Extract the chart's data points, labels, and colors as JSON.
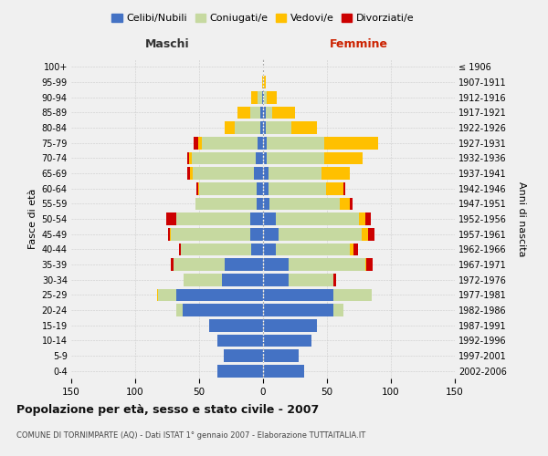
{
  "age_groups": [
    "0-4",
    "5-9",
    "10-14",
    "15-19",
    "20-24",
    "25-29",
    "30-34",
    "35-39",
    "40-44",
    "45-49",
    "50-54",
    "55-59",
    "60-64",
    "65-69",
    "70-74",
    "75-79",
    "80-84",
    "85-89",
    "90-94",
    "95-99",
    "100+"
  ],
  "birth_years": [
    "2002-2006",
    "1997-2001",
    "1992-1996",
    "1987-1991",
    "1982-1986",
    "1977-1981",
    "1972-1976",
    "1967-1971",
    "1962-1966",
    "1957-1961",
    "1952-1956",
    "1947-1951",
    "1942-1946",
    "1937-1941",
    "1932-1936",
    "1927-1931",
    "1922-1926",
    "1917-1921",
    "1912-1916",
    "1907-1911",
    "≤ 1906"
  ],
  "male": {
    "celibi": [
      36,
      31,
      36,
      42,
      63,
      68,
      32,
      30,
      9,
      10,
      10,
      5,
      5,
      7,
      6,
      4,
      2,
      2,
      1,
      0,
      0
    ],
    "coniugati": [
      0,
      0,
      0,
      0,
      5,
      14,
      30,
      40,
      55,
      62,
      58,
      48,
      45,
      48,
      50,
      44,
      20,
      8,
      3,
      0,
      0
    ],
    "vedovi": [
      0,
      0,
      0,
      0,
      0,
      1,
      0,
      0,
      0,
      1,
      0,
      0,
      1,
      2,
      2,
      3,
      8,
      10,
      5,
      1,
      0
    ],
    "divorziati": [
      0,
      0,
      0,
      0,
      0,
      0,
      0,
      2,
      2,
      1,
      8,
      0,
      1,
      2,
      1,
      3,
      0,
      0,
      0,
      0,
      0
    ]
  },
  "female": {
    "nubili": [
      32,
      28,
      38,
      42,
      55,
      55,
      20,
      20,
      10,
      12,
      10,
      5,
      4,
      4,
      3,
      3,
      2,
      2,
      1,
      0,
      0
    ],
    "coniugate": [
      0,
      0,
      0,
      0,
      8,
      30,
      35,
      60,
      58,
      65,
      65,
      55,
      45,
      42,
      45,
      45,
      20,
      5,
      2,
      0,
      0
    ],
    "vedove": [
      0,
      0,
      0,
      0,
      0,
      0,
      0,
      1,
      3,
      5,
      5,
      8,
      14,
      22,
      30,
      42,
      20,
      18,
      8,
      2,
      0
    ],
    "divorziate": [
      0,
      0,
      0,
      0,
      0,
      0,
      2,
      5,
      3,
      5,
      4,
      2,
      1,
      0,
      0,
      0,
      0,
      0,
      0,
      0,
      0
    ]
  },
  "colors": {
    "celibi": "#4472c4",
    "coniugati": "#c6d9a0",
    "vedovi": "#ffc000",
    "divorziati": "#cc0000"
  },
  "title": "Popolazione per età, sesso e stato civile - 2007",
  "subtitle": "COMUNE DI TORNIMPARTE (AQ) - Dati ISTAT 1° gennaio 2007 - Elaborazione TUTTAITALIA.IT",
  "xlabel_left": "Maschi",
  "xlabel_right": "Femmine",
  "ylabel_left": "Fasce di età",
  "ylabel_right": "Anni di nascita",
  "xlim": 150,
  "background_color": "#f0f0f0",
  "legend_labels": [
    "Celibi/Nubili",
    "Coniugati/e",
    "Vedovi/e",
    "Divorziati/e"
  ]
}
